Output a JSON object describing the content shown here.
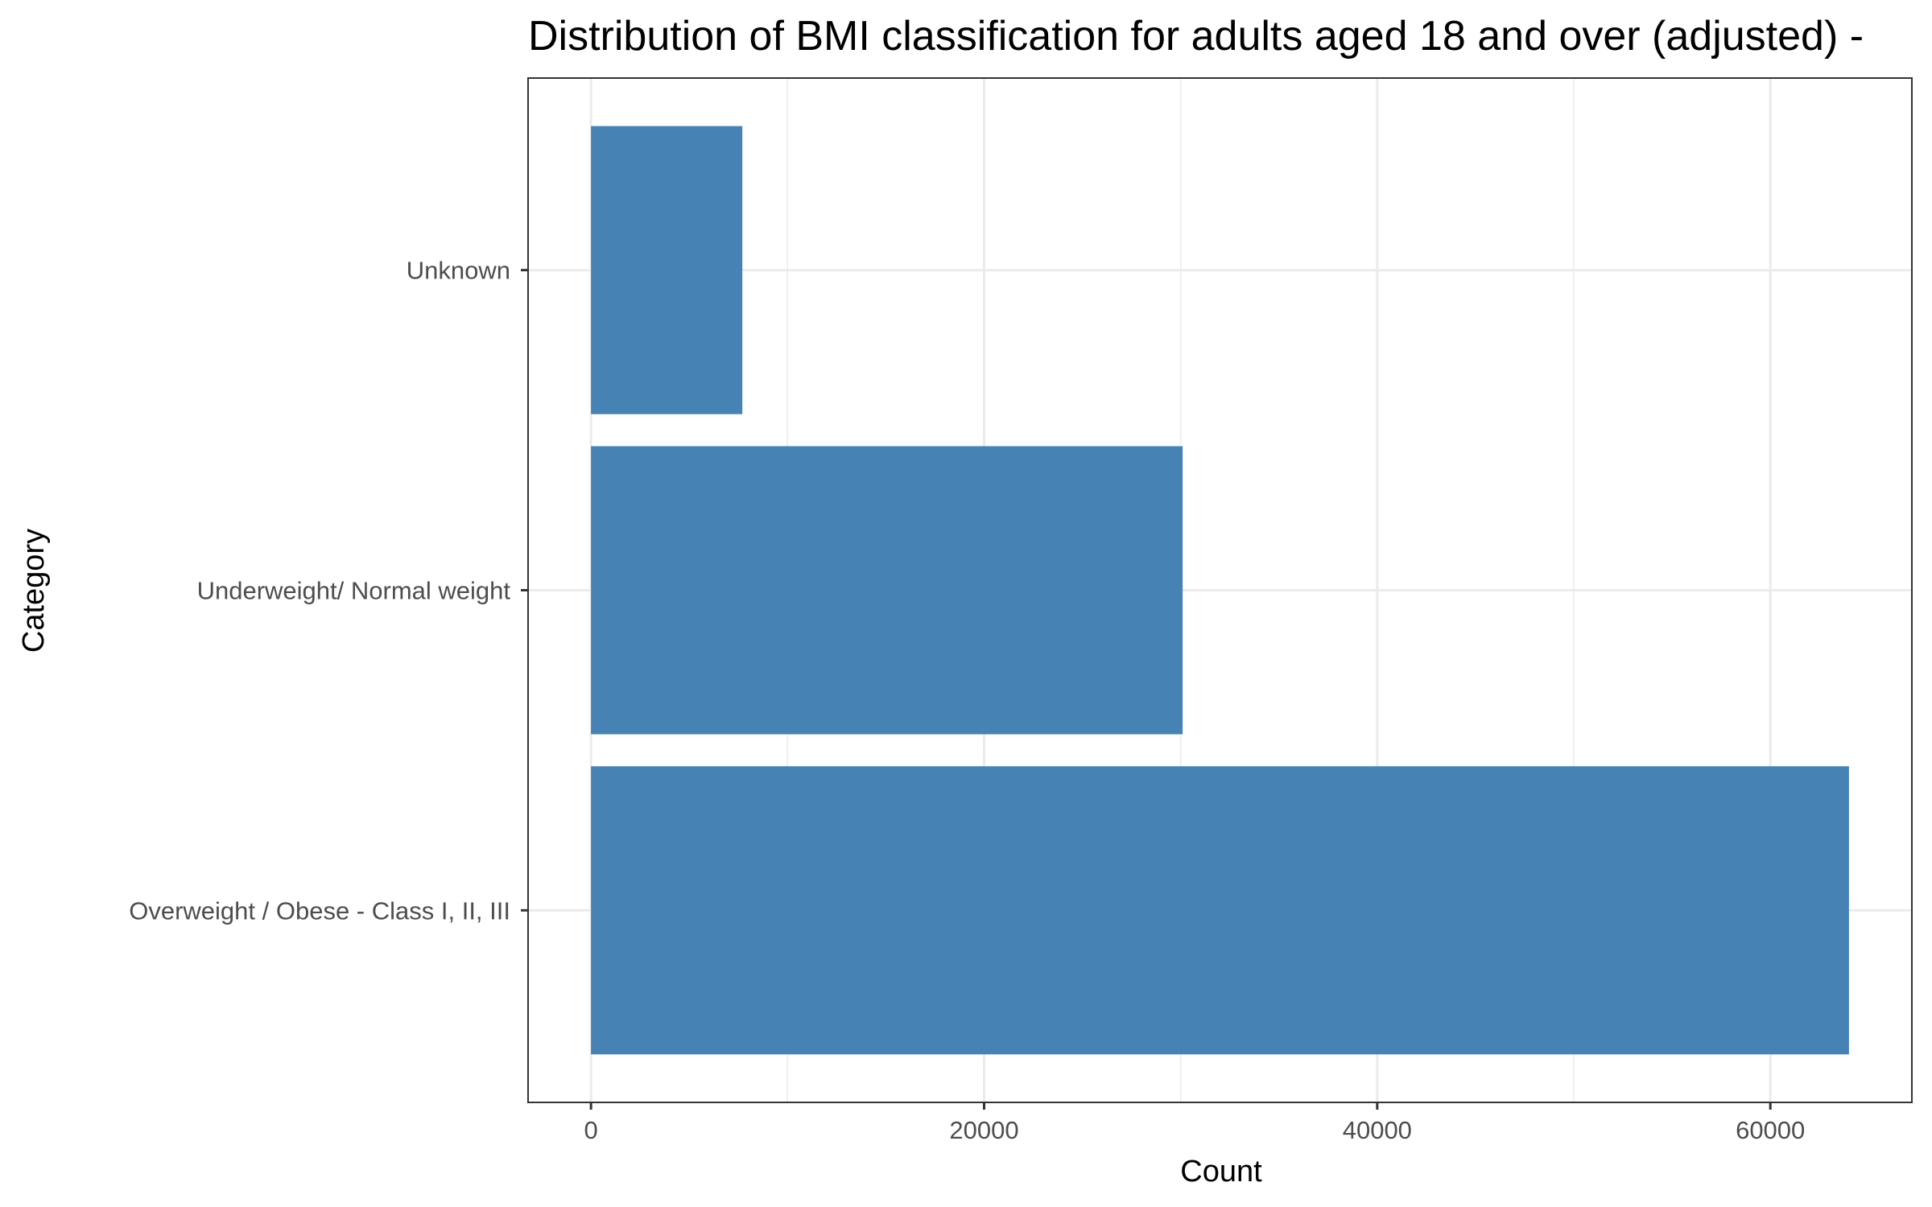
{
  "chart_data": {
    "type": "bar",
    "orientation": "horizontal",
    "title": "Distribution of BMI classification for adults aged 18 and over (adjusted) -",
    "xlabel": "Count",
    "ylabel": "Category",
    "categories": [
      "Overweight / Obese - Class I, II, III",
      "Underweight/ Normal weight",
      "Unknown"
    ],
    "values": [
      64000,
      30100,
      7700
    ],
    "xlim": [
      -3200,
      67200
    ],
    "xticks": [
      0,
      20000,
      40000,
      60000
    ],
    "xtick_labels": [
      "0",
      "20000",
      "40000",
      "60000"
    ],
    "grid": true,
    "legend": "none",
    "colors": {
      "bar": "#4682b4",
      "grid": "#ebebeb",
      "panel_border": "#333333"
    }
  }
}
